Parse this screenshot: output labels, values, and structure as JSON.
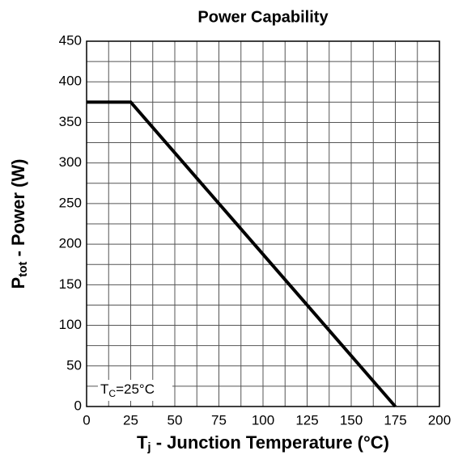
{
  "chart_data": {
    "type": "line",
    "title": "Power Capability",
    "x_label": {
      "main": "T",
      "sub": "j",
      "rest": " - Junction Temperature (°C)"
    },
    "y_label": {
      "main": "P",
      "sub": "tot",
      "rest": " - Power (W)"
    },
    "annotation": {
      "main": "T",
      "sub": "C",
      "rest": "=25°C"
    },
    "series": [
      {
        "name": "Ptot",
        "color": "#000000",
        "x": [
          0,
          25,
          175
        ],
        "values": [
          375,
          375,
          0
        ]
      }
    ],
    "xlim": [
      0,
      200
    ],
    "xticks": [
      0,
      25,
      50,
      75,
      100,
      125,
      150,
      175,
      200
    ],
    "ylim": [
      0,
      450
    ],
    "yticks": [
      0,
      50,
      100,
      150,
      200,
      250,
      300,
      350,
      400,
      450
    ],
    "grid": true,
    "minor_grid": true
  }
}
